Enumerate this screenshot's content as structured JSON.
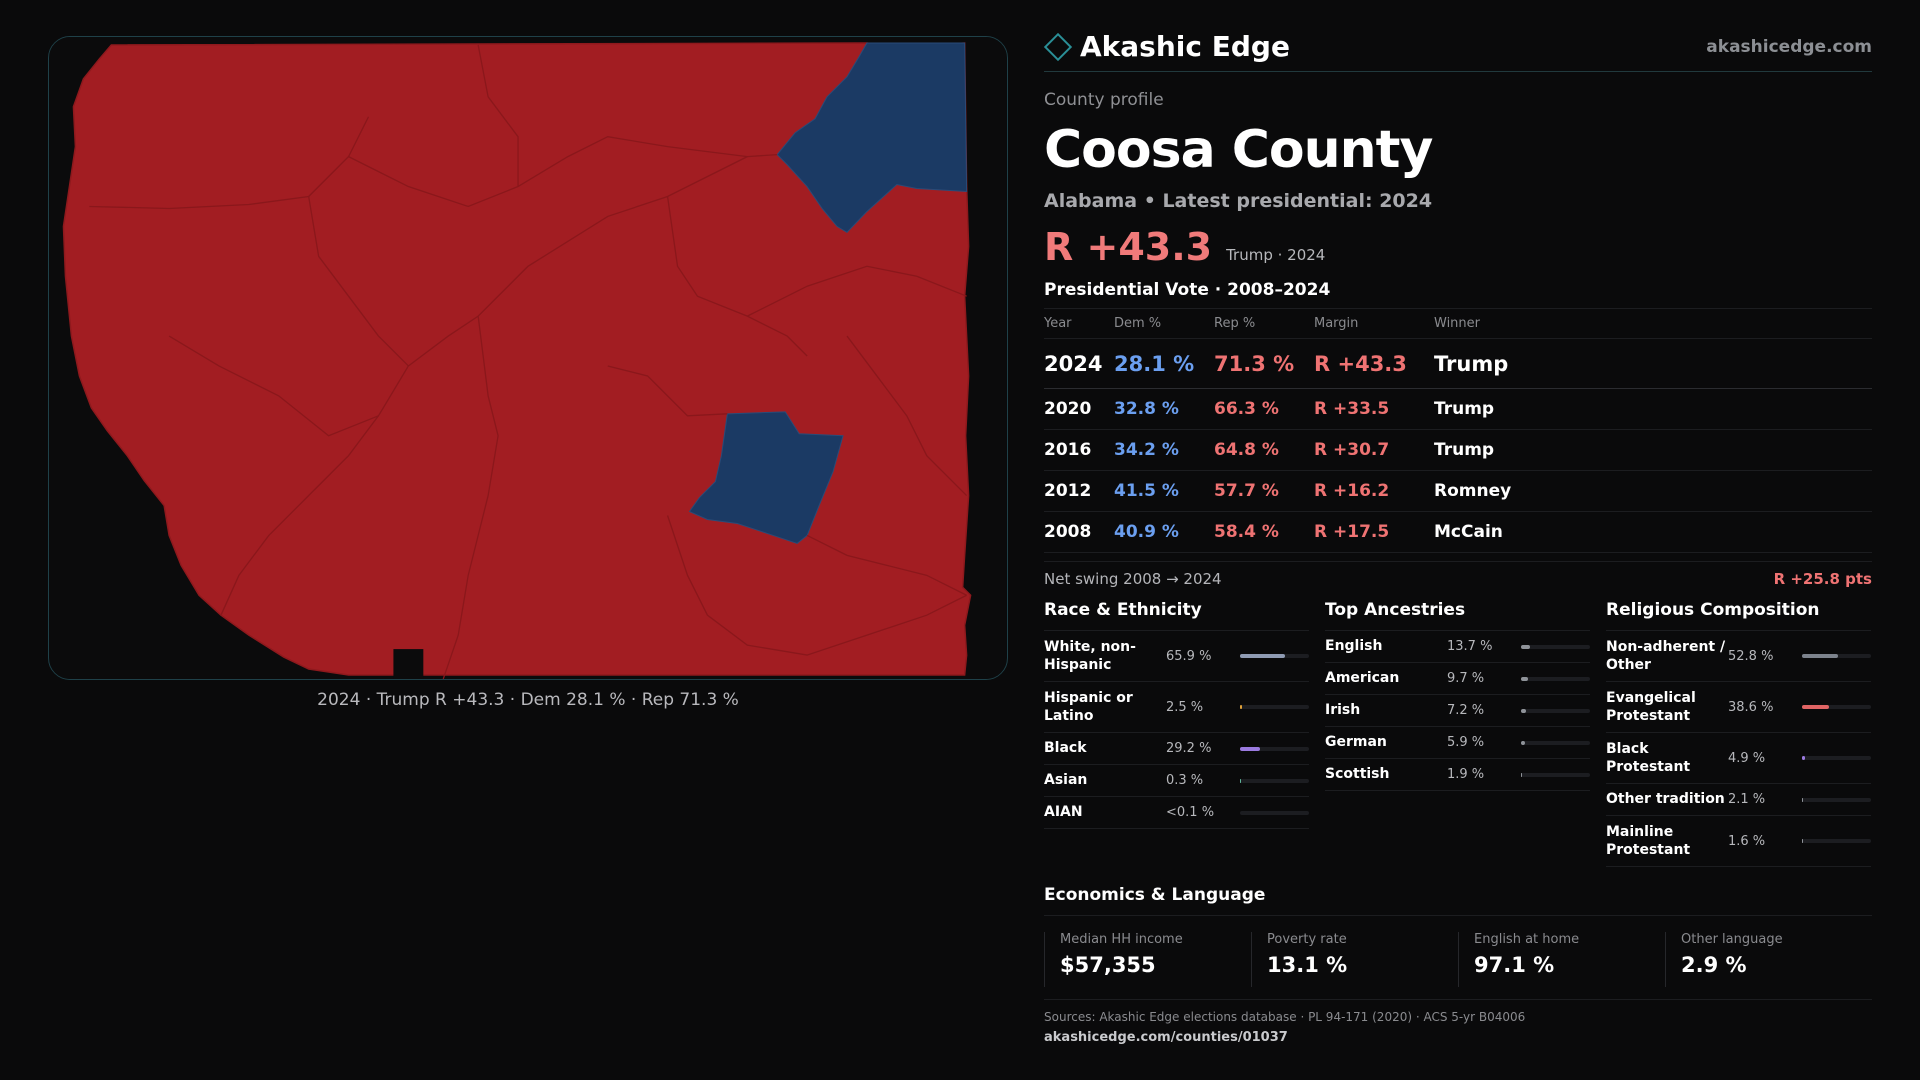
{
  "map": {
    "caption": "2024 · Trump R +43.3 · Dem 28.1 % · Rep 71.3 %",
    "colors": {
      "republican": "#a21d22",
      "democrat": "#1b3a64",
      "background": "#0b0b0c"
    }
  },
  "header": {
    "brand": "Akashic Edge",
    "domain": "akashicedge.com",
    "logo_icon": "diamond-icon"
  },
  "county": {
    "kicker": "County profile",
    "name": "Coosa County",
    "subtitle": "Alabama • Latest presidential: 2024",
    "headline_margin": "R +43.3",
    "headline_note": "Trump · 2024"
  },
  "vote": {
    "title": "Presidential Vote · 2008–2024",
    "headers": {
      "year": "Year",
      "dem": "Dem %",
      "rep": "Rep %",
      "margin": "Margin",
      "winner": "Winner"
    },
    "rows": [
      {
        "year": "2024",
        "dem": "28.1 %",
        "rep": "71.3 %",
        "margin": "R +43.3",
        "winner": "Trump"
      },
      {
        "year": "2020",
        "dem": "32.8 %",
        "rep": "66.3 %",
        "margin": "R +33.5",
        "winner": "Trump"
      },
      {
        "year": "2016",
        "dem": "34.2 %",
        "rep": "64.8 %",
        "margin": "R +30.7",
        "winner": "Trump"
      },
      {
        "year": "2012",
        "dem": "41.5 %",
        "rep": "57.7 %",
        "margin": "R +16.2",
        "winner": "Romney"
      },
      {
        "year": "2008",
        "dem": "40.9 %",
        "rep": "58.4 %",
        "margin": "R +17.5",
        "winner": "McCain"
      }
    ],
    "swing_label": "Net swing 2008 → 2024",
    "swing_value": "R +25.8 pts"
  },
  "race": {
    "title": "Race & Ethnicity",
    "rows": [
      {
        "label": "White, non-Hispanic",
        "value": "65.9 %",
        "pct": 65.9,
        "color": "#8f9bb3"
      },
      {
        "label": "Hispanic or Latino",
        "value": "2.5 %",
        "pct": 2.5,
        "color": "#e0a23a"
      },
      {
        "label": "Black",
        "value": "29.2 %",
        "pct": 29.2,
        "color": "#9b7be0"
      },
      {
        "label": "Asian",
        "value": "0.3 %",
        "pct": 0.3,
        "color": "#5fb59a"
      },
      {
        "label": "AIAN",
        "value": "<0.1 %",
        "pct": 0,
        "color": "#8f9bb3"
      }
    ]
  },
  "ancestry": {
    "title": "Top Ancestries",
    "rows": [
      {
        "label": "English",
        "value": "13.7 %",
        "pct": 13.7,
        "color": "#8f9399"
      },
      {
        "label": "American",
        "value": "9.7 %",
        "pct": 9.7,
        "color": "#8f9399"
      },
      {
        "label": "Irish",
        "value": "7.2 %",
        "pct": 7.2,
        "color": "#8f9399"
      },
      {
        "label": "German",
        "value": "5.9 %",
        "pct": 5.9,
        "color": "#8f9399"
      },
      {
        "label": "Scottish",
        "value": "1.9 %",
        "pct": 1.9,
        "color": "#8f9399"
      }
    ]
  },
  "religion": {
    "title": "Religious Composition",
    "rows": [
      {
        "label": "Non-adherent / Other",
        "value": "52.8 %",
        "pct": 52.8,
        "color": "#7d838d"
      },
      {
        "label": "Evangelical Protestant",
        "value": "38.6 %",
        "pct": 38.6,
        "color": "#e06464"
      },
      {
        "label": "Black Protestant",
        "value": "4.9 %",
        "pct": 4.9,
        "color": "#9b7be0"
      },
      {
        "label": "Other tradition",
        "value": "2.1 %",
        "pct": 2.1,
        "color": "#8f9399"
      },
      {
        "label": "Mainline Protestant",
        "value": "1.6 %",
        "pct": 1.6,
        "color": "#8f9399"
      }
    ]
  },
  "economics": {
    "title": "Economics & Language",
    "cells": [
      {
        "label": "Median HH income",
        "value": "$57,355"
      },
      {
        "label": "Poverty rate",
        "value": "13.1 %"
      },
      {
        "label": "English at home",
        "value": "97.1 %"
      },
      {
        "label": "Other language",
        "value": "2.9 %"
      }
    ]
  },
  "footer": {
    "sources": "Sources: Akashic Edge elections database · PL 94-171 (2020) · ACS 5-yr B04006",
    "url": "akashicedge.com/counties/01037"
  }
}
